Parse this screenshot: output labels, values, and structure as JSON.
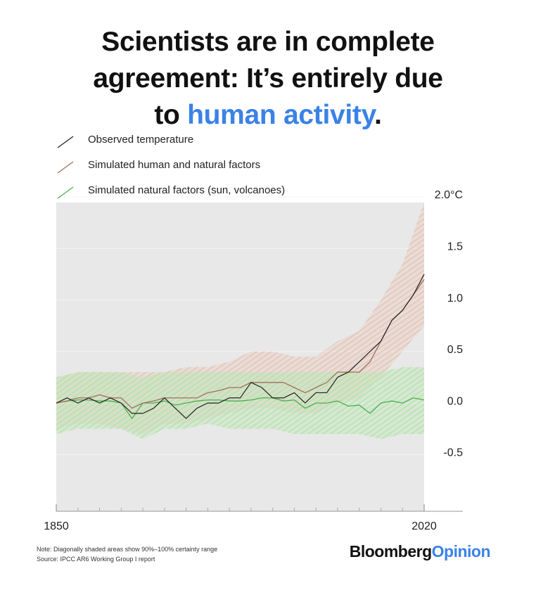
{
  "chart_data": {
    "type": "line",
    "title": [
      "Scientists are in complete",
      "agreement: It’s entirely due",
      "to",
      "human activity",
      "."
    ],
    "x": [
      1850,
      1855,
      1860,
      1865,
      1870,
      1875,
      1880,
      1885,
      1890,
      1895,
      1900,
      1905,
      1910,
      1915,
      1920,
      1925,
      1930,
      1935,
      1940,
      1945,
      1950,
      1955,
      1960,
      1965,
      1970,
      1975,
      1980,
      1985,
      1990,
      1995,
      2000,
      2005,
      2010,
      2015,
      2020
    ],
    "band_x": [
      1850,
      1860,
      1870,
      1880,
      1890,
      1900,
      1910,
      1920,
      1930,
      1940,
      1950,
      1960,
      1970,
      1980,
      1990,
      2000,
      2010,
      2020
    ],
    "series": [
      {
        "name": "Observed temperature",
        "color": "#222222",
        "values": [
          0.0,
          0.05,
          0.0,
          0.05,
          0.0,
          0.05,
          0.0,
          -0.1,
          -0.1,
          -0.05,
          0.05,
          -0.05,
          -0.15,
          -0.05,
          0.0,
          0.0,
          0.05,
          0.05,
          0.2,
          0.15,
          0.05,
          0.05,
          0.1,
          0.0,
          0.1,
          0.1,
          0.25,
          0.3,
          0.4,
          0.5,
          0.6,
          0.8,
          0.9,
          1.05,
          1.25
        ]
      },
      {
        "name": "Simulated human and natural factors",
        "color": "#a0705a",
        "band_color": "#e6c4b6",
        "values": [
          0.0,
          0.02,
          0.05,
          0.05,
          0.08,
          0.05,
          0.05,
          -0.05,
          0.0,
          0.02,
          0.05,
          0.05,
          0.05,
          0.05,
          0.1,
          0.12,
          0.15,
          0.15,
          0.2,
          0.2,
          0.2,
          0.2,
          0.15,
          0.1,
          0.15,
          0.2,
          0.3,
          0.3,
          0.3,
          0.4,
          0.6,
          0.8,
          0.9,
          1.05,
          1.2
        ],
        "band_lower": [
          -0.25,
          -0.2,
          -0.2,
          -0.25,
          -0.3,
          -0.2,
          -0.2,
          -0.15,
          -0.1,
          -0.05,
          -0.05,
          -0.1,
          -0.1,
          0.0,
          0.05,
          0.25,
          0.5,
          0.75
        ],
        "band_upper": [
          0.25,
          0.3,
          0.3,
          0.3,
          0.3,
          0.3,
          0.35,
          0.35,
          0.4,
          0.5,
          0.5,
          0.45,
          0.45,
          0.6,
          0.7,
          1.0,
          1.35,
          1.95
        ]
      },
      {
        "name": "Simulated natural factors (sun, volcanoes)",
        "color": "#4caf50",
        "band_color": "#b4e4ac",
        "values": [
          0.0,
          0.02,
          0.03,
          0.03,
          0.02,
          0.02,
          0.0,
          -0.15,
          0.0,
          0.0,
          0.02,
          -0.02,
          0.0,
          0.02,
          0.03,
          0.03,
          0.02,
          0.02,
          0.03,
          0.05,
          0.05,
          0.02,
          0.03,
          -0.05,
          0.0,
          0.0,
          0.02,
          -0.03,
          -0.02,
          -0.1,
          0.0,
          0.02,
          0.0,
          0.05,
          0.03
        ],
        "band_lower": [
          -0.3,
          -0.25,
          -0.25,
          -0.25,
          -0.35,
          -0.25,
          -0.25,
          -0.2,
          -0.25,
          -0.25,
          -0.25,
          -0.3,
          -0.3,
          -0.3,
          -0.3,
          -0.35,
          -0.3,
          -0.3
        ],
        "band_upper": [
          0.25,
          0.3,
          0.3,
          0.3,
          0.25,
          0.3,
          0.3,
          0.3,
          0.3,
          0.3,
          0.3,
          0.3,
          0.3,
          0.3,
          0.3,
          0.3,
          0.35,
          0.35
        ]
      }
    ],
    "xlim": [
      1850,
      2020
    ],
    "xticks": [
      1850,
      2020
    ],
    "ylim": [
      -1.05,
      2.0
    ],
    "yticks": [
      {
        "value": 2,
        "label": "2.0°C"
      },
      1.5,
      {
        "value": 1,
        "label": "1.0"
      },
      0.5,
      {
        "value": 0,
        "label": "0.0"
      },
      -0.5
    ],
    "grid": true,
    "background": "#e8e8e8",
    "notes": [
      "Note: Diagonally shaded areas show 90%–100% certainty range",
      "Source: IPCC AR6 Working Group I report"
    ],
    "brand": [
      "Bloomberg",
      "Opinion"
    ]
  }
}
